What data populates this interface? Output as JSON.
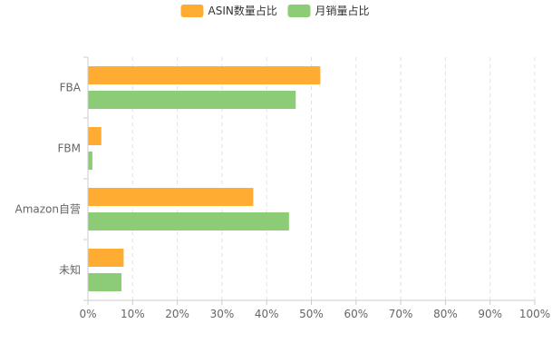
{
  "chart_data": {
    "type": "bar",
    "orientation": "horizontal",
    "categories": [
      "FBA",
      "FBM",
      "Amazon自营",
      "未知"
    ],
    "series": [
      {
        "name": "ASIN数量占比",
        "color": "#FFAC33",
        "values": [
          52,
          3,
          37,
          8
        ]
      },
      {
        "name": "月销量占比",
        "color": "#8CCC76",
        "values": [
          46.5,
          1,
          45,
          7.5
        ]
      }
    ],
    "xlim": [
      0,
      100
    ],
    "x_ticks": [
      "0%",
      "10%",
      "20%",
      "30%",
      "40%",
      "50%",
      "60%",
      "70%",
      "80%",
      "90%",
      "100%"
    ],
    "grid": "vertical-dashed",
    "legend_position": "top-center",
    "axis_color": "#cccccc",
    "grid_color": "#e0e0e0"
  }
}
